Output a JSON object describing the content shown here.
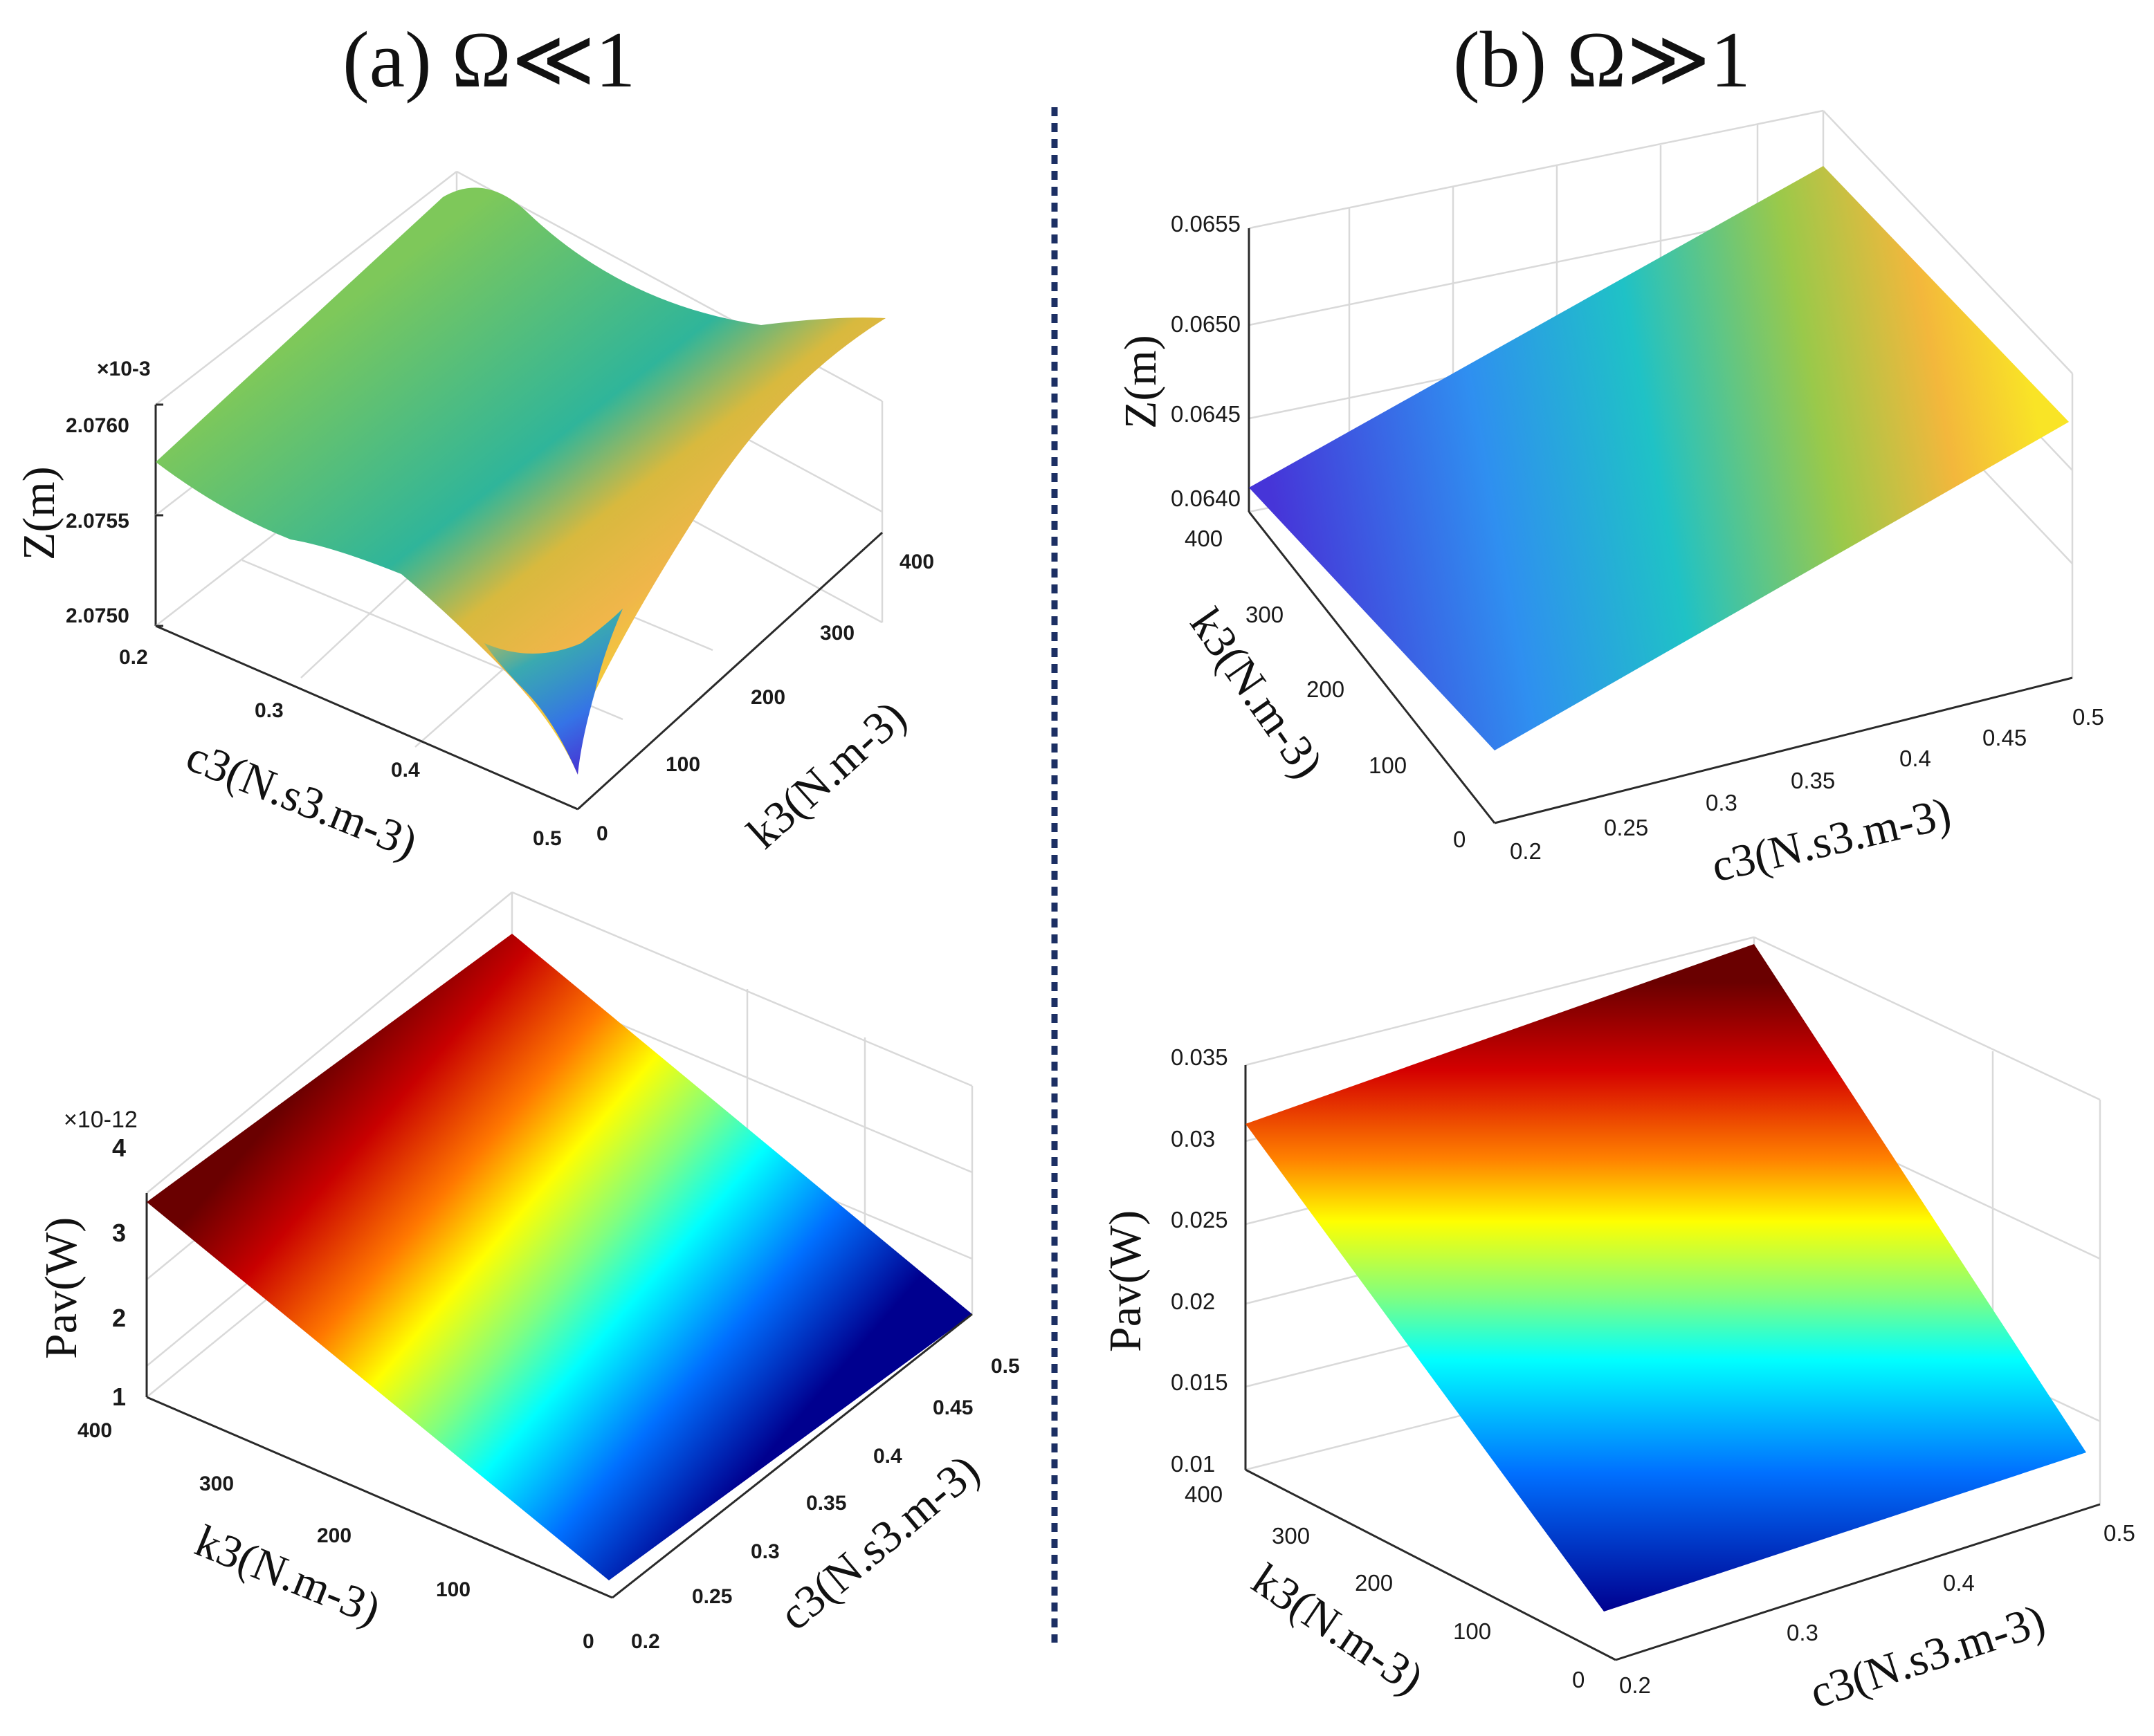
{
  "panel_titles": {
    "a": "(a)  Ω≪1",
    "b": "(b)  Ω≫1"
  },
  "chart_data": [
    {
      "type": "surface",
      "panel": "a-top",
      "title": "",
      "zlabel": "Z(m)",
      "xlabel": "c3(N.s3.m-3)",
      "ylabel": "k3(N.m-3)",
      "exponent_label": "×10-3",
      "xticks": [
        "0.2",
        "0.3",
        "0.4",
        "0.5"
      ],
      "yticks": [
        "0",
        "100",
        "200",
        "300",
        "400"
      ],
      "zticks": [
        "2.0750",
        "2.0755",
        "2.0760"
      ],
      "xlim": [
        0.2,
        0.5
      ],
      "ylim": [
        0,
        400
      ],
      "zlim": [
        2.075,
        2.0762
      ],
      "corner_values": {
        "c0.2_k0": 2.07585,
        "c0.2_k400": 2.07585,
        "c0.5_k0": 2.07505,
        "c0.5_k400": 2.076
      },
      "colormap": "parula",
      "grid": "on"
    },
    {
      "type": "surface",
      "panel": "a-bottom",
      "title": "",
      "zlabel": "Pav(W)",
      "xlabel": "c3(N.s3.m-3)",
      "ylabel": "k3(N.m-3)",
      "exponent_label": "×10-12",
      "xticks": [
        "0.2",
        "0.25",
        "0.3",
        "0.35",
        "0.4",
        "0.45",
        "0.5"
      ],
      "yticks": [
        "0",
        "100",
        "200",
        "300",
        "400"
      ],
      "zticks": [
        "1",
        "2",
        "3",
        "4"
      ],
      "xlim": [
        0.2,
        0.5
      ],
      "ylim": [
        0,
        400
      ],
      "zlim": [
        1,
        4
      ],
      "corner_values": {
        "c0.2_k400": 3.5,
        "c0.5_k400": 2.0
      },
      "colormap": "jet",
      "grid": "on"
    },
    {
      "type": "surface",
      "panel": "b-top",
      "title": "",
      "zlabel": "Z(m)",
      "xlabel": "c3(N.s3.m-3)",
      "ylabel": "k3(N.m-3)",
      "xticks": [
        "0.2",
        "0.25",
        "0.3",
        "0.35",
        "0.4",
        "0.45",
        "0.5"
      ],
      "yticks": [
        "0",
        "100",
        "200",
        "300",
        "400"
      ],
      "zticks": [
        "0.0640",
        "0.0645",
        "0.0650",
        "0.0655"
      ],
      "xlim": [
        0.2,
        0.5
      ],
      "ylim": [
        0,
        400
      ],
      "zlim": [
        0.064,
        0.0655
      ],
      "corner_values": {
        "c0.2_k400": 0.064,
        "c0.5_k0": 0.0647,
        "c0.5_k400": 0.0656
      },
      "colormap": "parula",
      "grid": "on"
    },
    {
      "type": "surface",
      "panel": "b-bottom",
      "title": "",
      "zlabel": "Pav(W)",
      "xlabel": "c3(N.s3.m-3)",
      "ylabel": "k3(N.m-3)",
      "xticks": [
        "0.2",
        "0.3",
        "0.4",
        "0.5"
      ],
      "yticks": [
        "0",
        "100",
        "200",
        "300",
        "400"
      ],
      "zticks": [
        "0.01",
        "0.015",
        "0.02",
        "0.025",
        "0.03",
        "0.035"
      ],
      "xlim": [
        0.2,
        0.5
      ],
      "ylim": [
        0,
        400
      ],
      "zlim": [
        0.01,
        0.035
      ],
      "corner_values": {
        "c0.2_k400": 0.031,
        "c0.5_k400": 0.011
      },
      "colormap": "jet",
      "grid": "on"
    }
  ]
}
